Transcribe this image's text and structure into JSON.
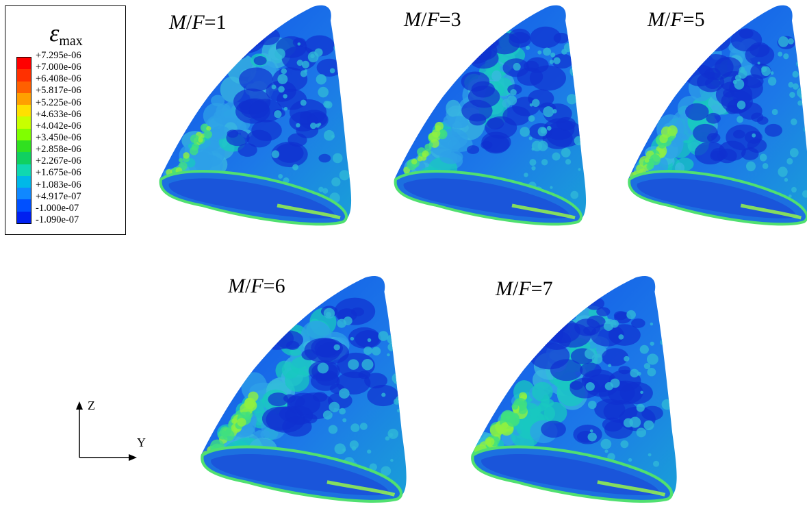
{
  "legend": {
    "symbol": "ε",
    "subscript": "max",
    "values": [
      "+7.295e-06",
      "+7.000e-06",
      "+6.408e-06",
      "+5.817e-06",
      "+5.225e-06",
      "+4.633e-06",
      "+4.042e-06",
      "+3.450e-06",
      "+2.858e-06",
      "+2.267e-06",
      "+1.675e-06",
      "+1.083e-06",
      "+4.917e-07",
      "-1.000e-07",
      "-1.090e-07"
    ],
    "colors": [
      "#ff0000",
      "#ff3000",
      "#ff6000",
      "#ffa000",
      "#ffe000",
      "#c8ff00",
      "#80ff00",
      "#30e020",
      "#10d060",
      "#10d8b0",
      "#00b8e8",
      "#1088ff",
      "#0050ff",
      "#0020f0",
      "#0000e0"
    ]
  },
  "panels": [
    {
      "label_var": "M",
      "label_sep": "/",
      "label_var2": "F",
      "label_rest": "=1"
    },
    {
      "label_var": "M",
      "label_sep": "/",
      "label_var2": "F",
      "label_rest": "=3"
    },
    {
      "label_var": "M",
      "label_sep": "/",
      "label_var2": "F",
      "label_rest": "=5"
    },
    {
      "label_var": "M",
      "label_sep": "/",
      "label_var2": "F",
      "label_rest": "=6"
    },
    {
      "label_var": "M",
      "label_sep": "/",
      "label_var2": "F",
      "label_rest": "=7"
    }
  ],
  "axes": {
    "z_label": "Z",
    "y_label": "Y"
  }
}
